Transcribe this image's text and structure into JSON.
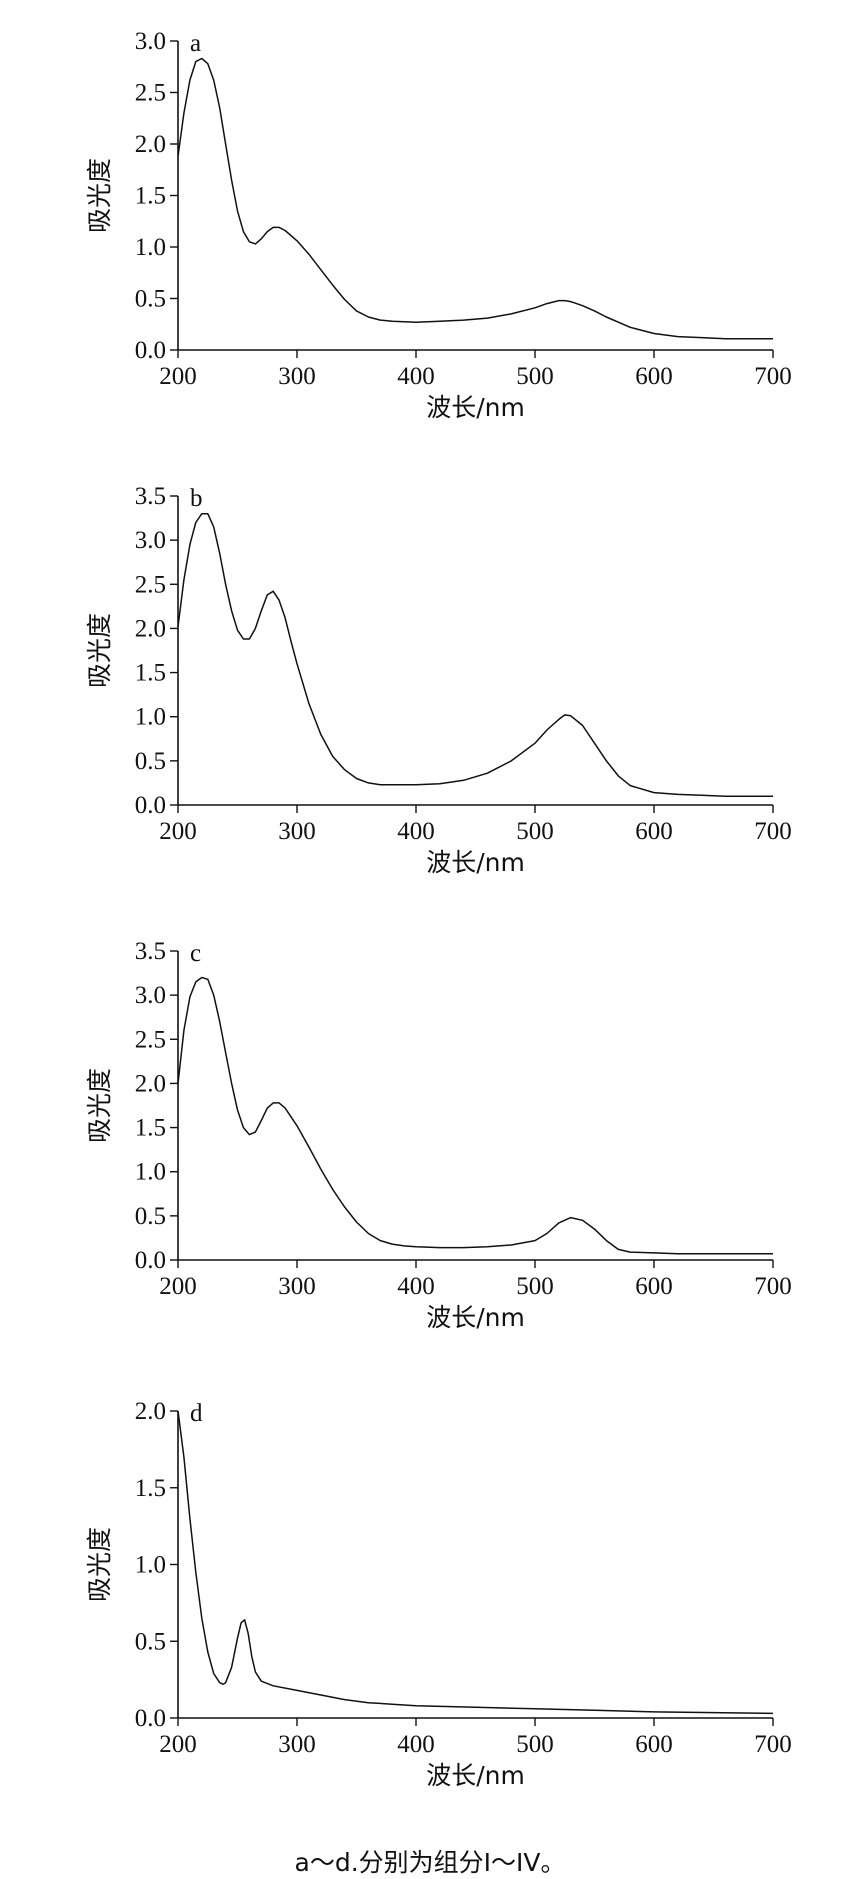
{
  "caption": "a～d.分别为组分I～IV。",
  "chart_data": [
    {
      "type": "line",
      "panel_label": "a",
      "xlabel": "波长/nm",
      "ylabel": "吸光度",
      "xlim": [
        200,
        700
      ],
      "ylim": [
        0,
        3.0
      ],
      "xticks": [
        "200",
        "300",
        "400",
        "500",
        "600",
        "700"
      ],
      "yticks": [
        "0.0",
        "0.5",
        "1.0",
        "1.5",
        "2.0",
        "2.5",
        "3.0"
      ],
      "series": [
        {
          "x": [
            200,
            205,
            210,
            215,
            220,
            225,
            230,
            235,
            240,
            245,
            250,
            255,
            260,
            265,
            270,
            275,
            280,
            285,
            290,
            300,
            310,
            320,
            330,
            340,
            350,
            360,
            370,
            380,
            400,
            420,
            440,
            460,
            480,
            500,
            510,
            520,
            525,
            530,
            540,
            550,
            560,
            580,
            600,
            620,
            640,
            660,
            680,
            700
          ],
          "y": [
            1.88,
            2.3,
            2.62,
            2.8,
            2.83,
            2.78,
            2.62,
            2.35,
            2.0,
            1.65,
            1.35,
            1.15,
            1.05,
            1.03,
            1.08,
            1.15,
            1.19,
            1.19,
            1.16,
            1.06,
            0.93,
            0.78,
            0.63,
            0.49,
            0.38,
            0.32,
            0.29,
            0.28,
            0.27,
            0.28,
            0.29,
            0.31,
            0.35,
            0.41,
            0.45,
            0.48,
            0.48,
            0.47,
            0.43,
            0.38,
            0.32,
            0.22,
            0.16,
            0.13,
            0.12,
            0.11,
            0.11,
            0.11
          ]
        }
      ]
    },
    {
      "type": "line",
      "panel_label": "b",
      "xlabel": "波长/nm",
      "ylabel": "吸光度",
      "xlim": [
        200,
        700
      ],
      "ylim": [
        0,
        3.5
      ],
      "xticks": [
        "200",
        "300",
        "400",
        "500",
        "600",
        "700"
      ],
      "yticks": [
        "0.0",
        "0.5",
        "1.0",
        "1.5",
        "2.0",
        "2.5",
        "3.0",
        "3.5"
      ],
      "series": [
        {
          "x": [
            200,
            205,
            210,
            215,
            220,
            225,
            230,
            235,
            240,
            245,
            250,
            255,
            260,
            265,
            270,
            275,
            280,
            285,
            290,
            295,
            300,
            310,
            320,
            330,
            340,
            350,
            360,
            370,
            380,
            400,
            420,
            440,
            460,
            480,
            500,
            510,
            520,
            525,
            530,
            540,
            550,
            560,
            570,
            580,
            600,
            620,
            640,
            660,
            680,
            700
          ],
          "y": [
            2.02,
            2.55,
            2.95,
            3.2,
            3.3,
            3.3,
            3.15,
            2.85,
            2.5,
            2.2,
            1.98,
            1.88,
            1.88,
            2.0,
            2.2,
            2.38,
            2.42,
            2.32,
            2.12,
            1.85,
            1.6,
            1.15,
            0.8,
            0.55,
            0.4,
            0.3,
            0.25,
            0.23,
            0.23,
            0.23,
            0.24,
            0.28,
            0.36,
            0.5,
            0.7,
            0.85,
            0.97,
            1.02,
            1.01,
            0.9,
            0.7,
            0.5,
            0.33,
            0.22,
            0.14,
            0.12,
            0.11,
            0.1,
            0.1,
            0.1
          ]
        }
      ]
    },
    {
      "type": "line",
      "panel_label": "c",
      "xlabel": "波长/nm",
      "ylabel": "吸光度",
      "xlim": [
        200,
        700
      ],
      "ylim": [
        0,
        3.5
      ],
      "xticks": [
        "200",
        "300",
        "400",
        "500",
        "600",
        "700"
      ],
      "yticks": [
        "0.0",
        "0.5",
        "1.0",
        "1.5",
        "2.0",
        "2.5",
        "3.0",
        "3.5"
      ],
      "series": [
        {
          "x": [
            200,
            205,
            210,
            215,
            220,
            225,
            230,
            235,
            240,
            245,
            250,
            255,
            260,
            265,
            270,
            275,
            280,
            285,
            290,
            300,
            310,
            320,
            330,
            340,
            350,
            360,
            370,
            380,
            390,
            400,
            420,
            440,
            460,
            480,
            500,
            510,
            520,
            530,
            540,
            550,
            560,
            570,
            580,
            600,
            620,
            640,
            660,
            680,
            700
          ],
          "y": [
            2.0,
            2.6,
            2.98,
            3.15,
            3.2,
            3.18,
            3.0,
            2.7,
            2.35,
            2.0,
            1.7,
            1.5,
            1.42,
            1.45,
            1.58,
            1.72,
            1.78,
            1.78,
            1.72,
            1.52,
            1.28,
            1.03,
            0.8,
            0.6,
            0.43,
            0.3,
            0.22,
            0.18,
            0.16,
            0.15,
            0.14,
            0.14,
            0.15,
            0.17,
            0.22,
            0.3,
            0.42,
            0.48,
            0.45,
            0.35,
            0.22,
            0.12,
            0.09,
            0.08,
            0.07,
            0.07,
            0.07,
            0.07,
            0.07
          ]
        }
      ]
    },
    {
      "type": "line",
      "panel_label": "d",
      "xlabel": "波长/nm",
      "ylabel": "吸光度",
      "xlim": [
        200,
        700
      ],
      "ylim": [
        0,
        2.0
      ],
      "xticks": [
        "200",
        "300",
        "400",
        "500",
        "600",
        "700"
      ],
      "yticks": [
        "0.0",
        "0.5",
        "1.0",
        "1.5",
        "2.0"
      ],
      "series": [
        {
          "x": [
            200,
            205,
            210,
            215,
            220,
            225,
            230,
            235,
            238,
            240,
            245,
            250,
            253,
            256,
            259,
            262,
            265,
            270,
            280,
            300,
            320,
            340,
            360,
            380,
            400,
            450,
            500,
            550,
            600,
            650,
            700
          ],
          "y": [
            2.0,
            1.7,
            1.3,
            0.95,
            0.65,
            0.43,
            0.29,
            0.23,
            0.22,
            0.23,
            0.33,
            0.52,
            0.62,
            0.64,
            0.55,
            0.4,
            0.3,
            0.24,
            0.21,
            0.18,
            0.15,
            0.12,
            0.1,
            0.09,
            0.08,
            0.07,
            0.06,
            0.05,
            0.04,
            0.035,
            0.03
          ]
        }
      ]
    }
  ]
}
